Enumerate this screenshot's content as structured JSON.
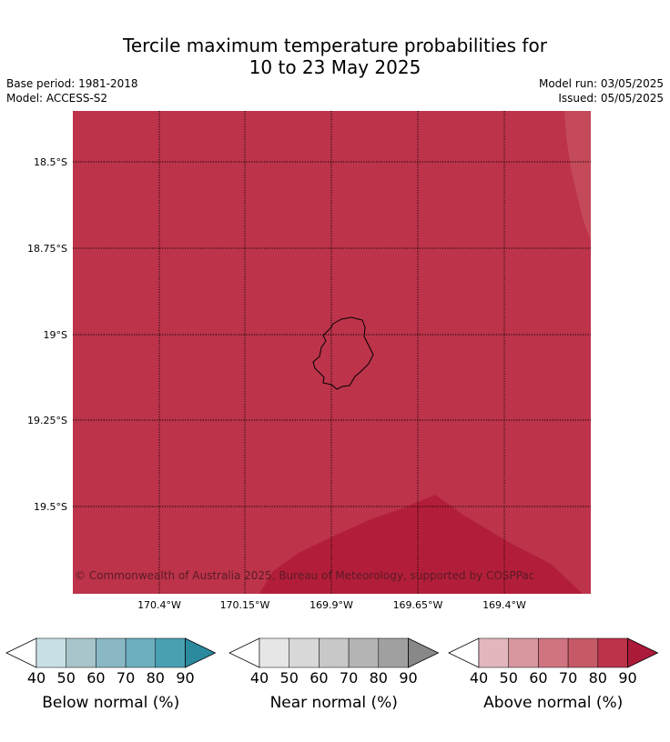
{
  "title_line1": "Tercile maximum temperature probabilities for",
  "title_line2": "10 to 23 May 2025",
  "base_period": "Base period: 1981-2018",
  "model": "Model: ACCESS-S2",
  "model_run": "Model run: 03/05/2025",
  "issued": "Issued: 05/05/2025",
  "copyright": "© Commonwealth of Australia 2025, Bureau of Meteorology, supported by COSPPac",
  "map": {
    "lat_labels": [
      "18.5°S",
      "18.75°S",
      "19°S",
      "19.25°S",
      "19.5°S"
    ],
    "lon_labels": [
      "170.4°W",
      "170.15°W",
      "169.9°W",
      "169.65°W",
      "169.4°W"
    ],
    "gridlines": "dotted",
    "fill_category": "Above normal",
    "fill_colors": {
      "above_80": "#bc334a",
      "above_90": "#b21e3a",
      "above_70": "#c44a5a"
    }
  },
  "colorbars": [
    {
      "label": "Below normal (%)",
      "ticks": [
        "40",
        "50",
        "60",
        "70",
        "80",
        "90"
      ],
      "colors": [
        "#c8e0e6",
        "#a7c5ca",
        "#89b8c4",
        "#6cafbf",
        "#4aa0b3",
        "#2b8a9e"
      ]
    },
    {
      "label": "Near normal (%)",
      "ticks": [
        "40",
        "50",
        "60",
        "70",
        "80",
        "90"
      ],
      "colors": [
        "#e6e6e6",
        "#d8d8d8",
        "#c8c8c8",
        "#b4b4b4",
        "#a0a0a0",
        "#888888"
      ]
    },
    {
      "label": "Above normal (%)",
      "ticks": [
        "40",
        "50",
        "60",
        "70",
        "80",
        "90"
      ],
      "colors": [
        "#e2b6bc",
        "#d8969e",
        "#cf7480",
        "#c55a66",
        "#bc334a",
        "#ac1a3a"
      ]
    }
  ]
}
